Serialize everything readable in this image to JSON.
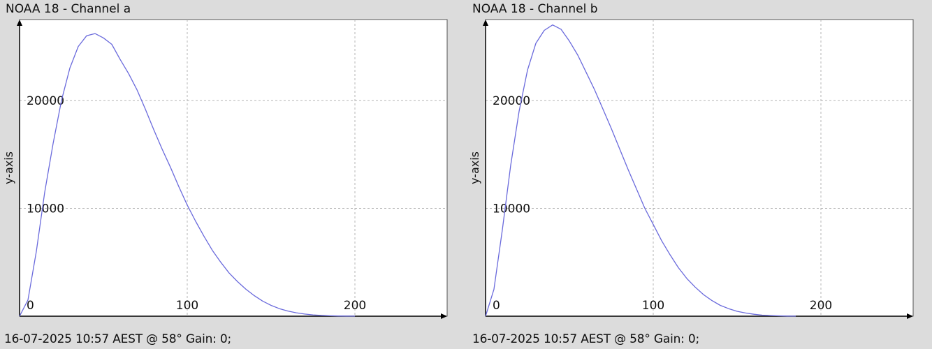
{
  "chart_data": [
    {
      "type": "line",
      "title": "NOAA 18 - Channel a",
      "footer": "16-07-2025 10:57 AEST @ 58° Gain: 0;",
      "xlabel": "",
      "ylabel": "y-axis",
      "xlim": [
        0,
        255
      ],
      "ylim": [
        0,
        27500
      ],
      "x_ticks": [
        0,
        100,
        200
      ],
      "y_ticks": [
        10000,
        20000
      ],
      "grid": true,
      "line_color": "#6a6adc",
      "series": [
        {
          "x": [
            0,
            5,
            10,
            15,
            20,
            25,
            30,
            35,
            40,
            45,
            50,
            55,
            60,
            65,
            70,
            75,
            80,
            85,
            90,
            95,
            100,
            105,
            110,
            115,
            120,
            125,
            130,
            135,
            140,
            145,
            150,
            155,
            160,
            165,
            170,
            175,
            180,
            185,
            190,
            195,
            200
          ],
          "y": [
            0,
            1500,
            6000,
            11500,
            16000,
            20000,
            23000,
            25000,
            26000,
            26200,
            25800,
            25200,
            23800,
            22500,
            21000,
            19200,
            17300,
            15500,
            13800,
            12000,
            10300,
            8800,
            7400,
            6100,
            5000,
            4000,
            3200,
            2500,
            1900,
            1400,
            1000,
            700,
            480,
            320,
            200,
            120,
            70,
            40,
            20,
            10,
            5
          ]
        }
      ]
    },
    {
      "type": "line",
      "title": "NOAA 18 - Channel b",
      "footer": "16-07-2025 10:57 AEST @ 58° Gain: 0;",
      "xlabel": "",
      "ylabel": "y-axis",
      "xlim": [
        0,
        255
      ],
      "ylim": [
        0,
        27500
      ],
      "x_ticks": [
        0,
        100,
        200
      ],
      "y_ticks": [
        10000,
        20000
      ],
      "grid": true,
      "line_color": "#6a6adc",
      "series": [
        {
          "x": [
            0,
            5,
            10,
            15,
            20,
            25,
            30,
            35,
            40,
            45,
            50,
            55,
            60,
            65,
            70,
            75,
            80,
            85,
            90,
            95,
            100,
            105,
            110,
            115,
            120,
            125,
            130,
            135,
            140,
            145,
            150,
            155,
            160,
            165,
            170,
            175,
            180,
            185
          ],
          "y": [
            0,
            2500,
            8000,
            14000,
            19000,
            22800,
            25300,
            26500,
            27000,
            26600,
            25500,
            24200,
            22600,
            21000,
            19200,
            17400,
            15500,
            13600,
            11800,
            10000,
            8500,
            7000,
            5700,
            4500,
            3500,
            2700,
            2000,
            1450,
            1000,
            700,
            450,
            300,
            180,
            100,
            60,
            30,
            15,
            5
          ]
        }
      ]
    }
  ]
}
